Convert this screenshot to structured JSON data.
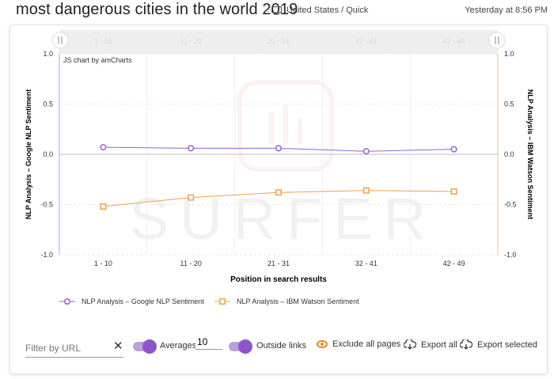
{
  "header": {
    "title": "most dangerous cities in the world 2019",
    "location": "United States / Quick",
    "timestamp": "Yesterday at 8:56 PM"
  },
  "chart_data": {
    "type": "line",
    "credit": "JS chart by amCharts",
    "watermark": "SURFER",
    "categories": [
      "1 - 10",
      "11 - 20",
      "21 - 31",
      "32 - 41",
      "42 - 49"
    ],
    "scrollbar_labels": [
      "1 - 10",
      "11 - 20",
      "21 - 31",
      "32 - 41",
      "42 - 49"
    ],
    "xlabel": "Position in search results",
    "ylabel_left": "NLP Analysis – Google NLP Sentiment",
    "ylabel_right": "NLP Analysis – IBM Watson Sentiment",
    "ylim": [
      -1.0,
      1.0
    ],
    "yticks": [
      "1.0",
      "0.5",
      "0.0",
      "-0.5",
      "-1.0"
    ],
    "yticks_right": [
      "1.0",
      "0.5",
      "0.0",
      "-0.5",
      "-1.0"
    ],
    "grid": true,
    "legend_position": "bottom-left",
    "series": [
      {
        "name": "NLP Analysis – Google NLP Sentiment",
        "values": [
          0.07,
          0.06,
          0.06,
          0.03,
          0.05
        ],
        "color": "#9b5fd3",
        "marker": "circle",
        "axis": "left"
      },
      {
        "name": "NLP Analysis – IBM Watson Sentiment",
        "values": [
          -0.52,
          -0.43,
          -0.38,
          -0.36,
          -0.37
        ],
        "color": "#f0a04b",
        "marker": "square",
        "axis": "right"
      }
    ]
  },
  "toolbar": {
    "filter_placeholder": "Filter by URL",
    "averages_label": "Averages",
    "averages_value": "10",
    "outside_links_label": "Outside links",
    "exclude_label": "Exclude all pages",
    "export_all_label": "Export all",
    "export_selected_label": "Export selected"
  },
  "icons": {
    "monitor": "monitor-icon",
    "close": "close-icon",
    "eye": "eye-icon",
    "download": "cloud-download-icon"
  }
}
